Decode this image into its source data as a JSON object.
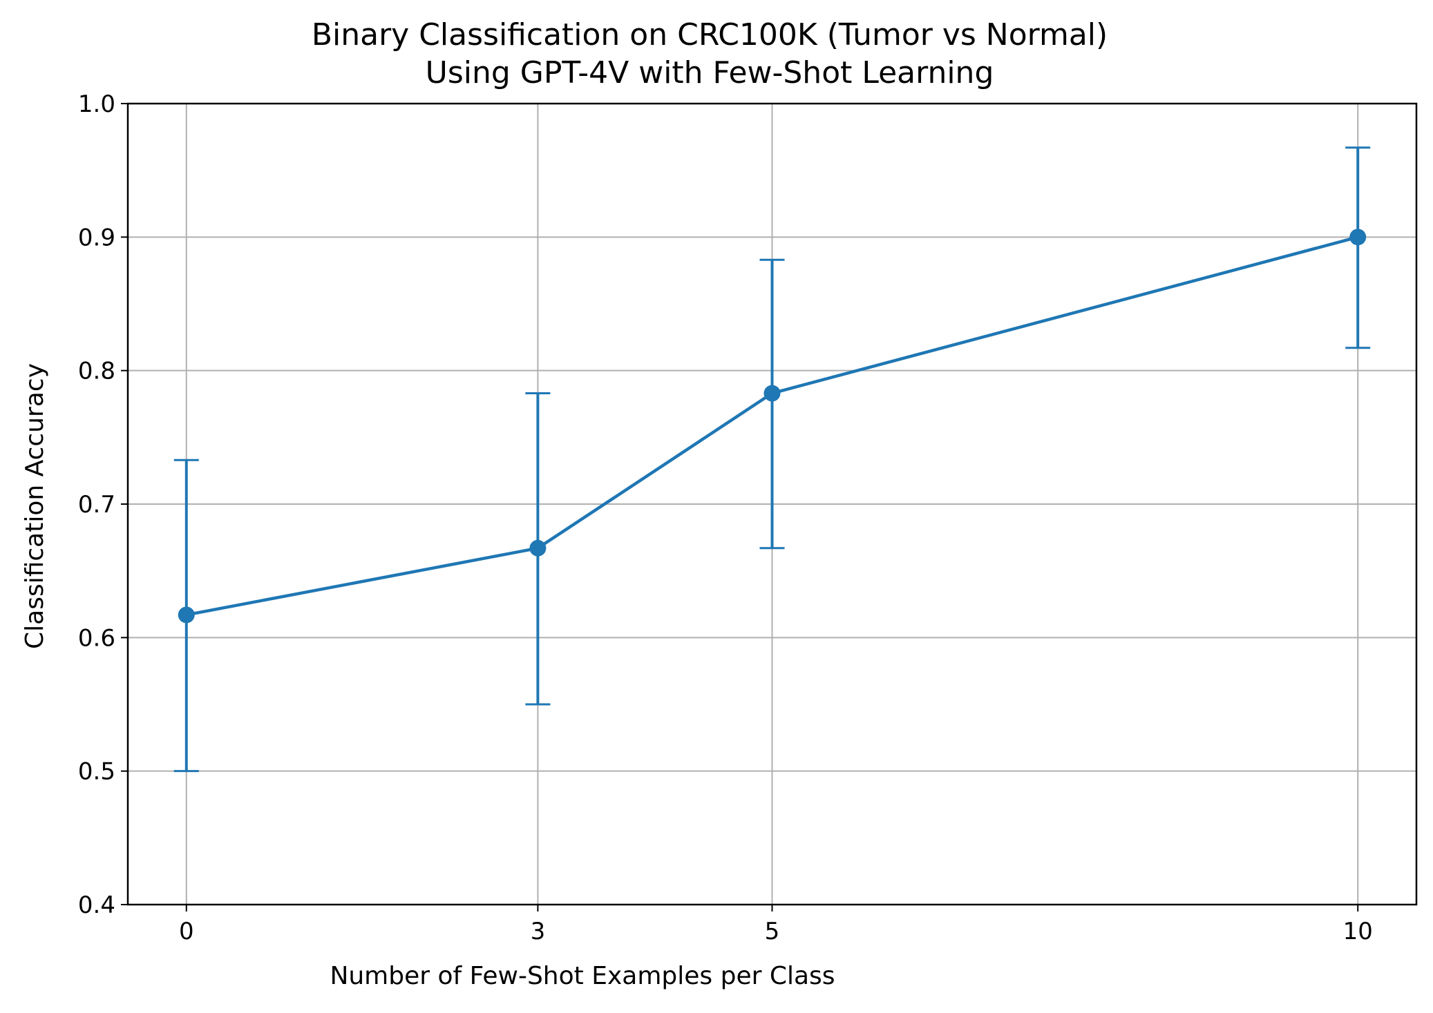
{
  "chart_data": {
    "type": "line",
    "title_lines": [
      "Binary Classification on CRC100K (Tumor vs Normal)",
      "Using GPT-4V with Few-Shot Learning"
    ],
    "xlabel": "Number of Few-Shot Examples per Class",
    "ylabel": "Classification Accuracy",
    "x": [
      0,
      3,
      5,
      10
    ],
    "x_tick_labels": [
      "0",
      "3",
      "5",
      "10"
    ],
    "y_ticks": [
      0.4,
      0.5,
      0.6,
      0.7,
      0.8,
      0.9,
      1.0
    ],
    "y_tick_labels": [
      "0.4",
      "0.5",
      "0.6",
      "0.7",
      "0.8",
      "0.9",
      "1.0"
    ],
    "ylim": [
      0.4,
      1.0
    ],
    "xlim": [
      -0.5,
      10.5
    ],
    "grid": true,
    "series": [
      {
        "values": [
          0.617,
          0.667,
          0.783,
          0.9
        ],
        "error_lower": [
          0.5,
          0.55,
          0.667,
          0.817
        ],
        "error_upper": [
          0.733,
          0.783,
          0.883,
          0.967
        ],
        "color": "#1f77b4",
        "marker": "circle"
      }
    ]
  }
}
